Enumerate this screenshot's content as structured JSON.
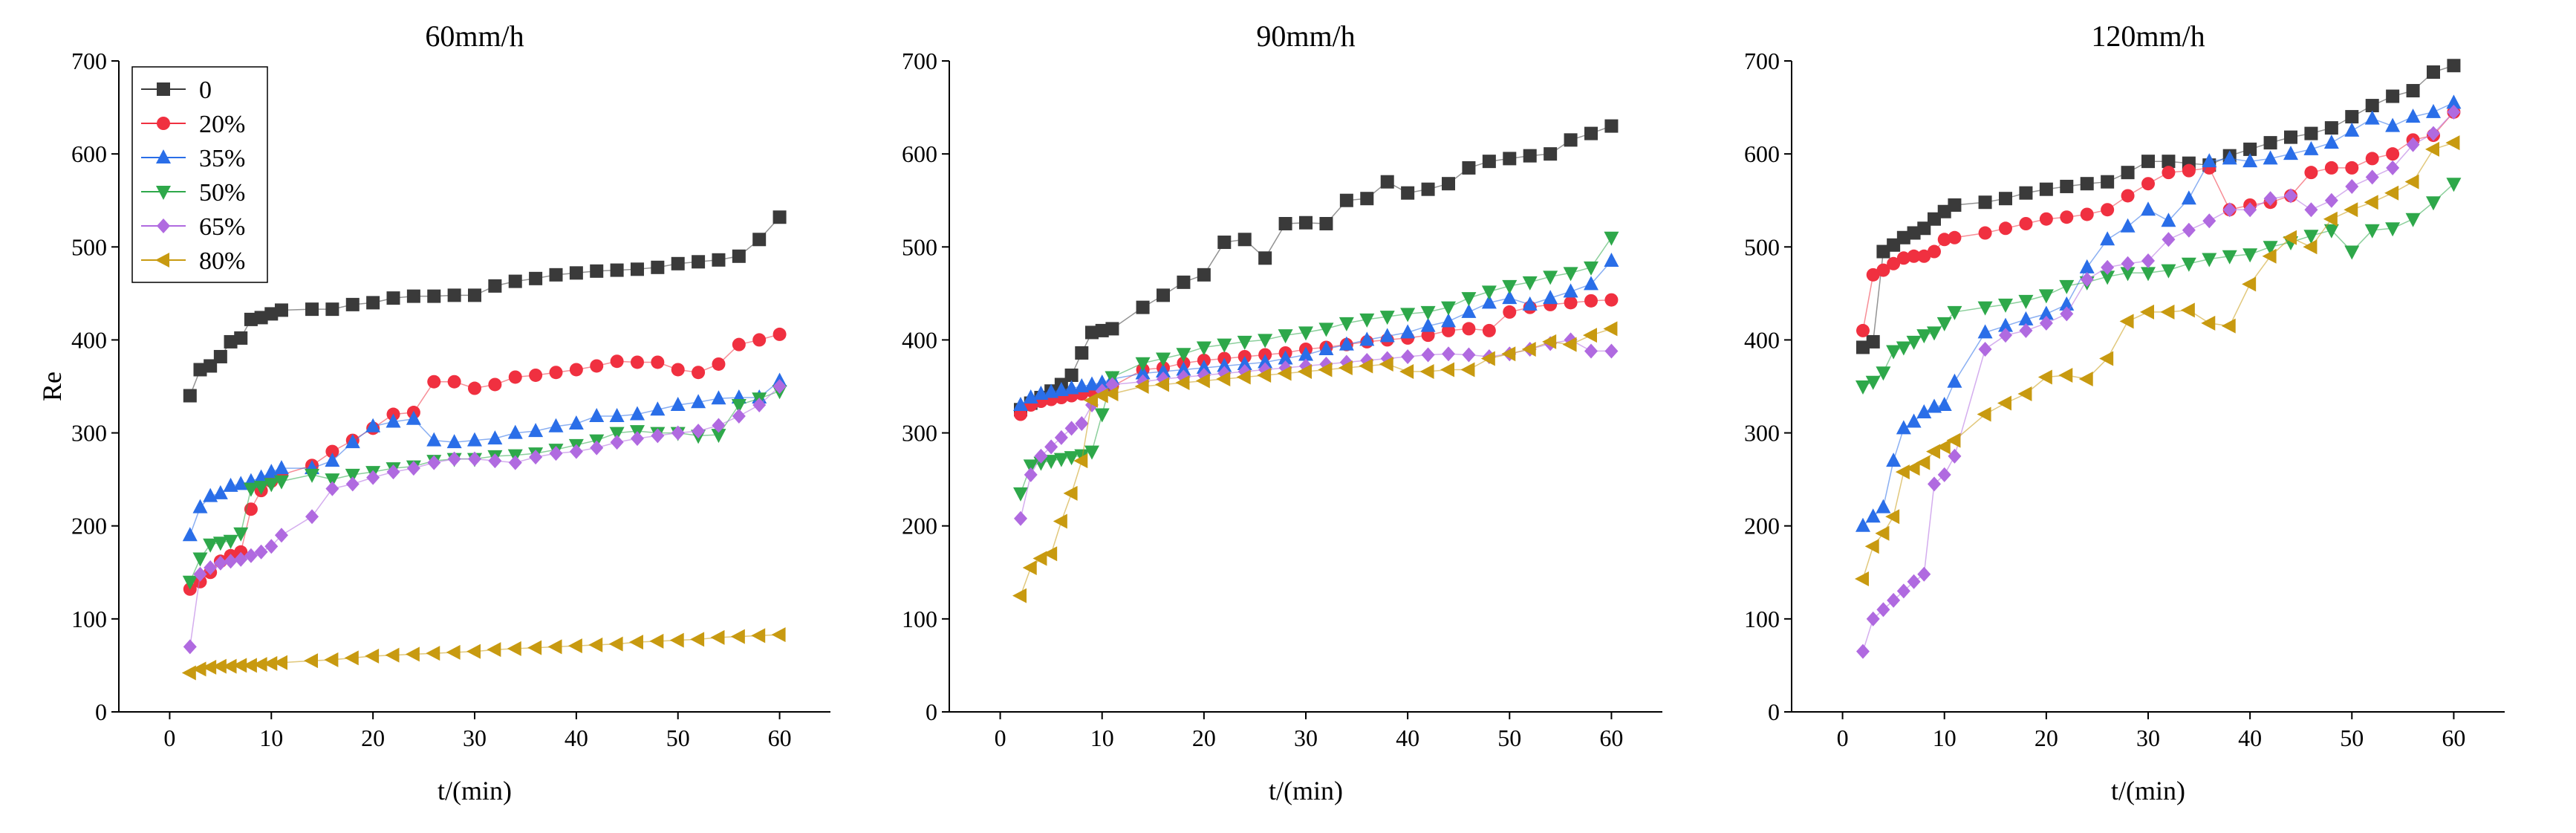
{
  "chart_data": [
    {
      "type": "scatter",
      "title": "60mm/h",
      "xlabel": "t/(min)",
      "ylabel": "Re",
      "xlim": [
        -5,
        65
      ],
      "ylim": [
        0,
        700
      ],
      "xticks": [
        0,
        10,
        20,
        30,
        40,
        50,
        60
      ],
      "yticks": [
        0,
        100,
        200,
        300,
        400,
        500,
        600,
        700
      ],
      "xticks_label": [
        "0",
        "10",
        "20",
        "30",
        "40",
        "50",
        "60"
      ],
      "yticks_label": [
        "0",
        "100",
        "200",
        "300",
        "400",
        "500",
        "600",
        "700"
      ],
      "legend": {
        "position": "top-left",
        "entries": [
          "0",
          "20%",
          "35%",
          "50%",
          "65%",
          "80%"
        ]
      },
      "x": [
        2,
        3,
        4,
        5,
        6,
        7,
        8,
        9,
        10,
        11,
        14,
        16,
        18,
        20,
        22,
        24,
        26,
        28,
        30,
        32,
        34,
        36,
        38,
        40,
        42,
        44,
        46,
        48,
        50,
        52,
        54,
        56,
        58,
        60
      ],
      "series": [
        {
          "name": "0",
          "color": "#3a3a3a",
          "marker": "square",
          "values": [
            340,
            368,
            372,
            382,
            398,
            402,
            422,
            424,
            428,
            432,
            433,
            433,
            438,
            440,
            445,
            447,
            447,
            448,
            448,
            458,
            463,
            466,
            470,
            472,
            474,
            475,
            476,
            478,
            482,
            484,
            486,
            490,
            508,
            532
          ]
        },
        {
          "name": "20%",
          "color": "#f03040",
          "marker": "circle",
          "values": [
            132,
            140,
            150,
            162,
            168,
            172,
            218,
            238,
            248,
            255,
            265,
            280,
            292,
            305,
            320,
            322,
            355,
            355,
            348,
            352,
            360,
            362,
            365,
            368,
            372,
            377,
            376,
            376,
            368,
            365,
            374,
            395,
            400,
            406
          ]
        },
        {
          "name": "35%",
          "color": "#2a6ee8",
          "marker": "triangle-up",
          "values": [
            190,
            220,
            232,
            235,
            243,
            245,
            248,
            252,
            258,
            262,
            262,
            270,
            290,
            307,
            312,
            315,
            292,
            290,
            292,
            294,
            300,
            302,
            307,
            310,
            318,
            318,
            320,
            325,
            330,
            333,
            337,
            338,
            338,
            356
          ]
        },
        {
          "name": "50%",
          "color": "#2ea84a",
          "marker": "triangle-down",
          "values": [
            140,
            165,
            180,
            182,
            184,
            192,
            240,
            242,
            245,
            248,
            255,
            250,
            255,
            258,
            262,
            264,
            270,
            272,
            272,
            275,
            276,
            278,
            282,
            287,
            292,
            300,
            302,
            300,
            300,
            297,
            298,
            330,
            337,
            345
          ]
        },
        {
          "name": "65%",
          "color": "#b06ae0",
          "marker": "diamond",
          "values": [
            70,
            148,
            155,
            160,
            162,
            164,
            168,
            172,
            178,
            190,
            210,
            240,
            245,
            252,
            258,
            262,
            268,
            272,
            272,
            270,
            268,
            274,
            278,
            280,
            284,
            290,
            294,
            297,
            300,
            302,
            308,
            318,
            330,
            350
          ]
        },
        {
          "name": "80%",
          "color": "#c89a10",
          "marker": "triangle-left",
          "values": [
            42,
            46,
            48,
            49,
            49,
            50,
            50,
            51,
            52,
            53,
            55,
            56,
            58,
            60,
            61,
            62,
            63,
            64,
            65,
            67,
            68,
            69,
            70,
            71,
            72,
            73,
            75,
            76,
            77,
            78,
            80,
            81,
            82,
            83
          ]
        }
      ]
    },
    {
      "type": "scatter",
      "title": "90mm/h",
      "xlabel": "t/(min)",
      "ylabel": "",
      "xlim": [
        -5,
        65
      ],
      "ylim": [
        0,
        700
      ],
      "xticks": [
        0,
        10,
        20,
        30,
        40,
        50,
        60
      ],
      "yticks": [
        0,
        100,
        200,
        300,
        400,
        500,
        600,
        700
      ],
      "xticks_label": [
        "0",
        "10",
        "20",
        "30",
        "40",
        "50",
        "60"
      ],
      "yticks_label": [
        "0",
        "100",
        "200",
        "300",
        "400",
        "500",
        "600",
        "700"
      ],
      "x": [
        2,
        3,
        4,
        5,
        6,
        7,
        8,
        9,
        10,
        11,
        14,
        16,
        18,
        20,
        22,
        24,
        26,
        28,
        30,
        32,
        34,
        36,
        38,
        40,
        42,
        44,
        46,
        48,
        50,
        52,
        54,
        56,
        58,
        60
      ],
      "series": [
        {
          "name": "0",
          "color": "#3a3a3a",
          "marker": "square",
          "values": [
            325,
            332,
            338,
            345,
            352,
            362,
            386,
            408,
            410,
            412,
            435,
            448,
            462,
            470,
            505,
            508,
            488,
            525,
            526,
            525,
            550,
            552,
            570,
            558,
            562,
            568,
            585,
            592,
            595,
            598,
            600,
            615,
            622,
            630
          ]
        },
        {
          "name": "20%",
          "color": "#f03040",
          "marker": "circle",
          "values": [
            320,
            330,
            334,
            336,
            338,
            340,
            342,
            345,
            348,
            350,
            368,
            370,
            375,
            378,
            380,
            382,
            384,
            386,
            390,
            392,
            395,
            398,
            400,
            402,
            405,
            410,
            412,
            410,
            430,
            435,
            438,
            440,
            442,
            443
          ]
        },
        {
          "name": "35%",
          "color": "#2a6ee8",
          "marker": "triangle-up",
          "values": [
            330,
            338,
            342,
            344,
            346,
            348,
            350,
            352,
            354,
            358,
            364,
            366,
            368,
            370,
            372,
            374,
            376,
            380,
            384,
            390,
            395,
            400,
            404,
            408,
            415,
            420,
            430,
            440,
            445,
            438,
            445,
            452,
            460,
            485
          ]
        },
        {
          "name": "50%",
          "color": "#2ea84a",
          "marker": "triangle-down",
          "values": [
            235,
            265,
            268,
            270,
            272,
            274,
            276,
            280,
            320,
            360,
            375,
            380,
            385,
            392,
            395,
            398,
            400,
            405,
            408,
            412,
            418,
            422,
            425,
            428,
            430,
            435,
            445,
            452,
            458,
            462,
            468,
            472,
            478,
            510
          ]
        },
        {
          "name": "65%",
          "color": "#b06ae0",
          "marker": "diamond",
          "values": [
            208,
            255,
            275,
            285,
            295,
            305,
            310,
            330,
            345,
            352,
            355,
            358,
            360,
            362,
            364,
            366,
            368,
            370,
            372,
            374,
            376,
            378,
            380,
            382,
            384,
            385,
            384,
            382,
            385,
            390,
            396,
            400,
            388,
            388
          ]
        },
        {
          "name": "80%",
          "color": "#c89a10",
          "marker": "triangle-left",
          "values": [
            125,
            155,
            165,
            170,
            205,
            235,
            270,
            335,
            340,
            342,
            350,
            352,
            354,
            356,
            358,
            360,
            362,
            364,
            366,
            368,
            370,
            372,
            374,
            366,
            366,
            368,
            368,
            380,
            385,
            390,
            398,
            395,
            405,
            412
          ]
        }
      ]
    },
    {
      "type": "scatter",
      "title": "120mm/h",
      "xlabel": "t/(min)",
      "ylabel": "",
      "xlim": [
        -5,
        65
      ],
      "ylim": [
        0,
        700
      ],
      "xticks": [
        0,
        10,
        20,
        30,
        40,
        50,
        60
      ],
      "yticks": [
        0,
        100,
        200,
        300,
        400,
        500,
        600,
        700
      ],
      "xticks_label": [
        "0",
        "10",
        "20",
        "30",
        "40",
        "50",
        "60"
      ],
      "yticks_label": [
        "0",
        "100",
        "200",
        "300",
        "400",
        "500",
        "600",
        "700"
      ],
      "x": [
        2,
        3,
        4,
        5,
        6,
        7,
        8,
        9,
        10,
        11,
        14,
        16,
        18,
        20,
        22,
        24,
        26,
        28,
        30,
        32,
        34,
        36,
        38,
        40,
        42,
        44,
        46,
        48,
        50,
        52,
        54,
        56,
        58,
        60
      ],
      "series": [
        {
          "name": "0",
          "color": "#3a3a3a",
          "marker": "square",
          "values": [
            392,
            398,
            495,
            502,
            510,
            515,
            520,
            530,
            538,
            545,
            548,
            552,
            558,
            562,
            565,
            568,
            570,
            580,
            592,
            592,
            590,
            588,
            598,
            605,
            612,
            618,
            622,
            628,
            640,
            652,
            662,
            668,
            688,
            695
          ]
        },
        {
          "name": "20%",
          "color": "#f03040",
          "marker": "circle",
          "values": [
            410,
            470,
            475,
            482,
            488,
            490,
            490,
            495,
            508,
            510,
            515,
            520,
            525,
            530,
            532,
            535,
            540,
            555,
            568,
            580,
            582,
            585,
            540,
            545,
            548,
            555,
            580,
            585,
            585,
            595,
            600,
            615,
            620,
            645
          ]
        },
        {
          "name": "35%",
          "color": "#2a6ee8",
          "marker": "triangle-up",
          "values": [
            200,
            210,
            220,
            270,
            305,
            312,
            322,
            328,
            330,
            355,
            408,
            415,
            422,
            428,
            438,
            478,
            508,
            522,
            540,
            528,
            552,
            592,
            595,
            592,
            595,
            600,
            605,
            612,
            625,
            638,
            630,
            640,
            645,
            655
          ]
        },
        {
          "name": "50%",
          "color": "#2ea84a",
          "marker": "triangle-down",
          "values": [
            350,
            355,
            365,
            388,
            392,
            398,
            405,
            408,
            418,
            430,
            435,
            438,
            442,
            448,
            458,
            462,
            468,
            472,
            472,
            475,
            482,
            487,
            490,
            492,
            500,
            505,
            512,
            518,
            495,
            518,
            520,
            530,
            548,
            568
          ]
        },
        {
          "name": "65%",
          "color": "#b06ae0",
          "marker": "diamond",
          "values": [
            65,
            100,
            110,
            120,
            130,
            140,
            148,
            245,
            255,
            275,
            390,
            405,
            410,
            418,
            428,
            465,
            478,
            482,
            485,
            508,
            518,
            528,
            540,
            540,
            552,
            555,
            540,
            550,
            565,
            575,
            585,
            610,
            622,
            645
          ]
        },
        {
          "name": "80%",
          "color": "#c89a10",
          "marker": "triangle-left",
          "values": [
            143,
            178,
            192,
            210,
            258,
            262,
            268,
            280,
            285,
            292,
            320,
            332,
            342,
            360,
            362,
            358,
            380,
            420,
            430,
            430,
            432,
            418,
            415,
            460,
            490,
            510,
            500,
            530,
            540,
            548,
            558,
            570,
            605,
            612
          ]
        }
      ]
    }
  ]
}
